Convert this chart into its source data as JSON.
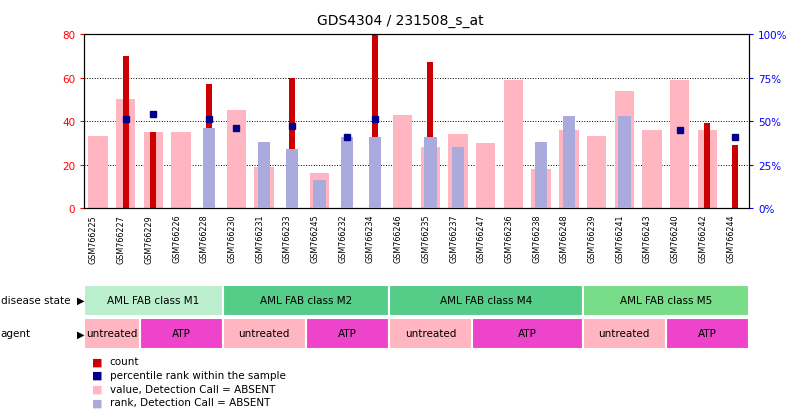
{
  "title": "GDS4304 / 231508_s_at",
  "samples": [
    "GSM766225",
    "GSM766227",
    "GSM766229",
    "GSM766226",
    "GSM766228",
    "GSM766230",
    "GSM766231",
    "GSM766233",
    "GSM766245",
    "GSM766232",
    "GSM766234",
    "GSM766246",
    "GSM766235",
    "GSM766237",
    "GSM766247",
    "GSM766236",
    "GSM766238",
    "GSM766248",
    "GSM766239",
    "GSM766241",
    "GSM766243",
    "GSM766240",
    "GSM766242",
    "GSM766244"
  ],
  "count_values": [
    0,
    70,
    35,
    0,
    57,
    0,
    0,
    60,
    0,
    1,
    80,
    0,
    67,
    0,
    0,
    0,
    0,
    0,
    0,
    0,
    0,
    0,
    39,
    29
  ],
  "percentile_rank": [
    null,
    51,
    54,
    null,
    51,
    46,
    null,
    47,
    null,
    41,
    51,
    null,
    null,
    null,
    null,
    null,
    null,
    null,
    null,
    null,
    null,
    45,
    null,
    41
  ],
  "value_absent": [
    33,
    50,
    35,
    35,
    null,
    45,
    19,
    null,
    16,
    null,
    null,
    43,
    28,
    34,
    30,
    59,
    18,
    36,
    33,
    54,
    36,
    59,
    36,
    null
  ],
  "rank_absent": [
    null,
    null,
    null,
    null,
    46,
    null,
    38,
    34,
    16,
    41,
    41,
    null,
    41,
    35,
    null,
    null,
    38,
    53,
    null,
    53,
    null,
    null,
    null,
    null
  ],
  "disease_state_groups": [
    {
      "label": "AML FAB class M1",
      "start": 0,
      "end": 5
    },
    {
      "label": "AML FAB class M2",
      "start": 5,
      "end": 11
    },
    {
      "label": "AML FAB class M4",
      "start": 11,
      "end": 18
    },
    {
      "label": "AML FAB class M5",
      "start": 18,
      "end": 24
    }
  ],
  "ds_colors": [
    "#BBEECC",
    "#55CC88",
    "#55CC88",
    "#77DD88"
  ],
  "agent_groups": [
    {
      "label": "untreated",
      "start": 0,
      "end": 2
    },
    {
      "label": "ATP",
      "start": 2,
      "end": 5
    },
    {
      "label": "untreated",
      "start": 5,
      "end": 8
    },
    {
      "label": "ATP",
      "start": 8,
      "end": 11
    },
    {
      "label": "untreated",
      "start": 11,
      "end": 14
    },
    {
      "label": "ATP",
      "start": 14,
      "end": 18
    },
    {
      "label": "untreated",
      "start": 18,
      "end": 21
    },
    {
      "label": "ATP",
      "start": 21,
      "end": 24
    }
  ],
  "agent_colors": [
    "#FFB6C1",
    "#EE44CC",
    "#FFB6C1",
    "#EE44CC",
    "#FFB6C1",
    "#EE44CC",
    "#FFB6C1",
    "#EE44CC"
  ],
  "ylim_left": [
    0,
    80
  ],
  "ylim_right": [
    0,
    100
  ],
  "yticks_left": [
    0,
    20,
    40,
    60,
    80
  ],
  "yticks_right": [
    0,
    25,
    50,
    75,
    100
  ],
  "ytick_labels_right": [
    "0%",
    "25%",
    "50%",
    "75%",
    "100%"
  ],
  "count_color": "#CC0000",
  "percentile_color": "#00008B",
  "value_absent_color": "#FFB6C1",
  "rank_absent_color": "#AAAADD",
  "ticklabel_bg": "#D0D0D0"
}
